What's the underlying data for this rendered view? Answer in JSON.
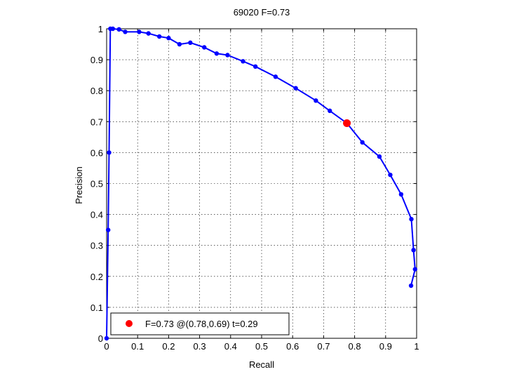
{
  "chart_data": {
    "type": "line",
    "title": "69020 F=0.73",
    "xlabel": "Recall",
    "ylabel": "Precision",
    "xlim": [
      0,
      1
    ],
    "ylim": [
      0,
      1
    ],
    "xticks": [
      "0",
      "0.1",
      "0.2",
      "0.3",
      "0.4",
      "0.5",
      "0.6",
      "0.7",
      "0.8",
      "0.9",
      "1"
    ],
    "yticks": [
      "0",
      "0.1",
      "0.2",
      "0.3",
      "0.4",
      "0.5",
      "0.6",
      "0.7",
      "0.8",
      "0.9",
      "1"
    ],
    "grid": true,
    "legend_position": "bottom-left",
    "series": [
      {
        "color": "#0000ff",
        "marker": "circle",
        "x": [
          0.0,
          0.005,
          0.008,
          0.012,
          0.02,
          0.04,
          0.06,
          0.105,
          0.135,
          0.17,
          0.2,
          0.235,
          0.27,
          0.315,
          0.355,
          0.39,
          0.44,
          0.48,
          0.545,
          0.61,
          0.675,
          0.72,
          0.775,
          0.825,
          0.88,
          0.915,
          0.95,
          0.983,
          0.99,
          0.995,
          0.982
        ],
        "y": [
          0.0,
          0.35,
          0.6,
          1.0,
          1.0,
          0.998,
          0.99,
          0.99,
          0.985,
          0.975,
          0.97,
          0.95,
          0.955,
          0.94,
          0.92,
          0.915,
          0.895,
          0.878,
          0.845,
          0.808,
          0.768,
          0.735,
          0.695,
          0.633,
          0.587,
          0.528,
          0.465,
          0.385,
          0.285,
          0.223,
          0.17
        ]
      }
    ],
    "best_point": {
      "label": "F=0.73 @(0.78,0.69) t=0.29",
      "x": 0.775,
      "y": 0.695,
      "color": "#ff0000"
    }
  }
}
